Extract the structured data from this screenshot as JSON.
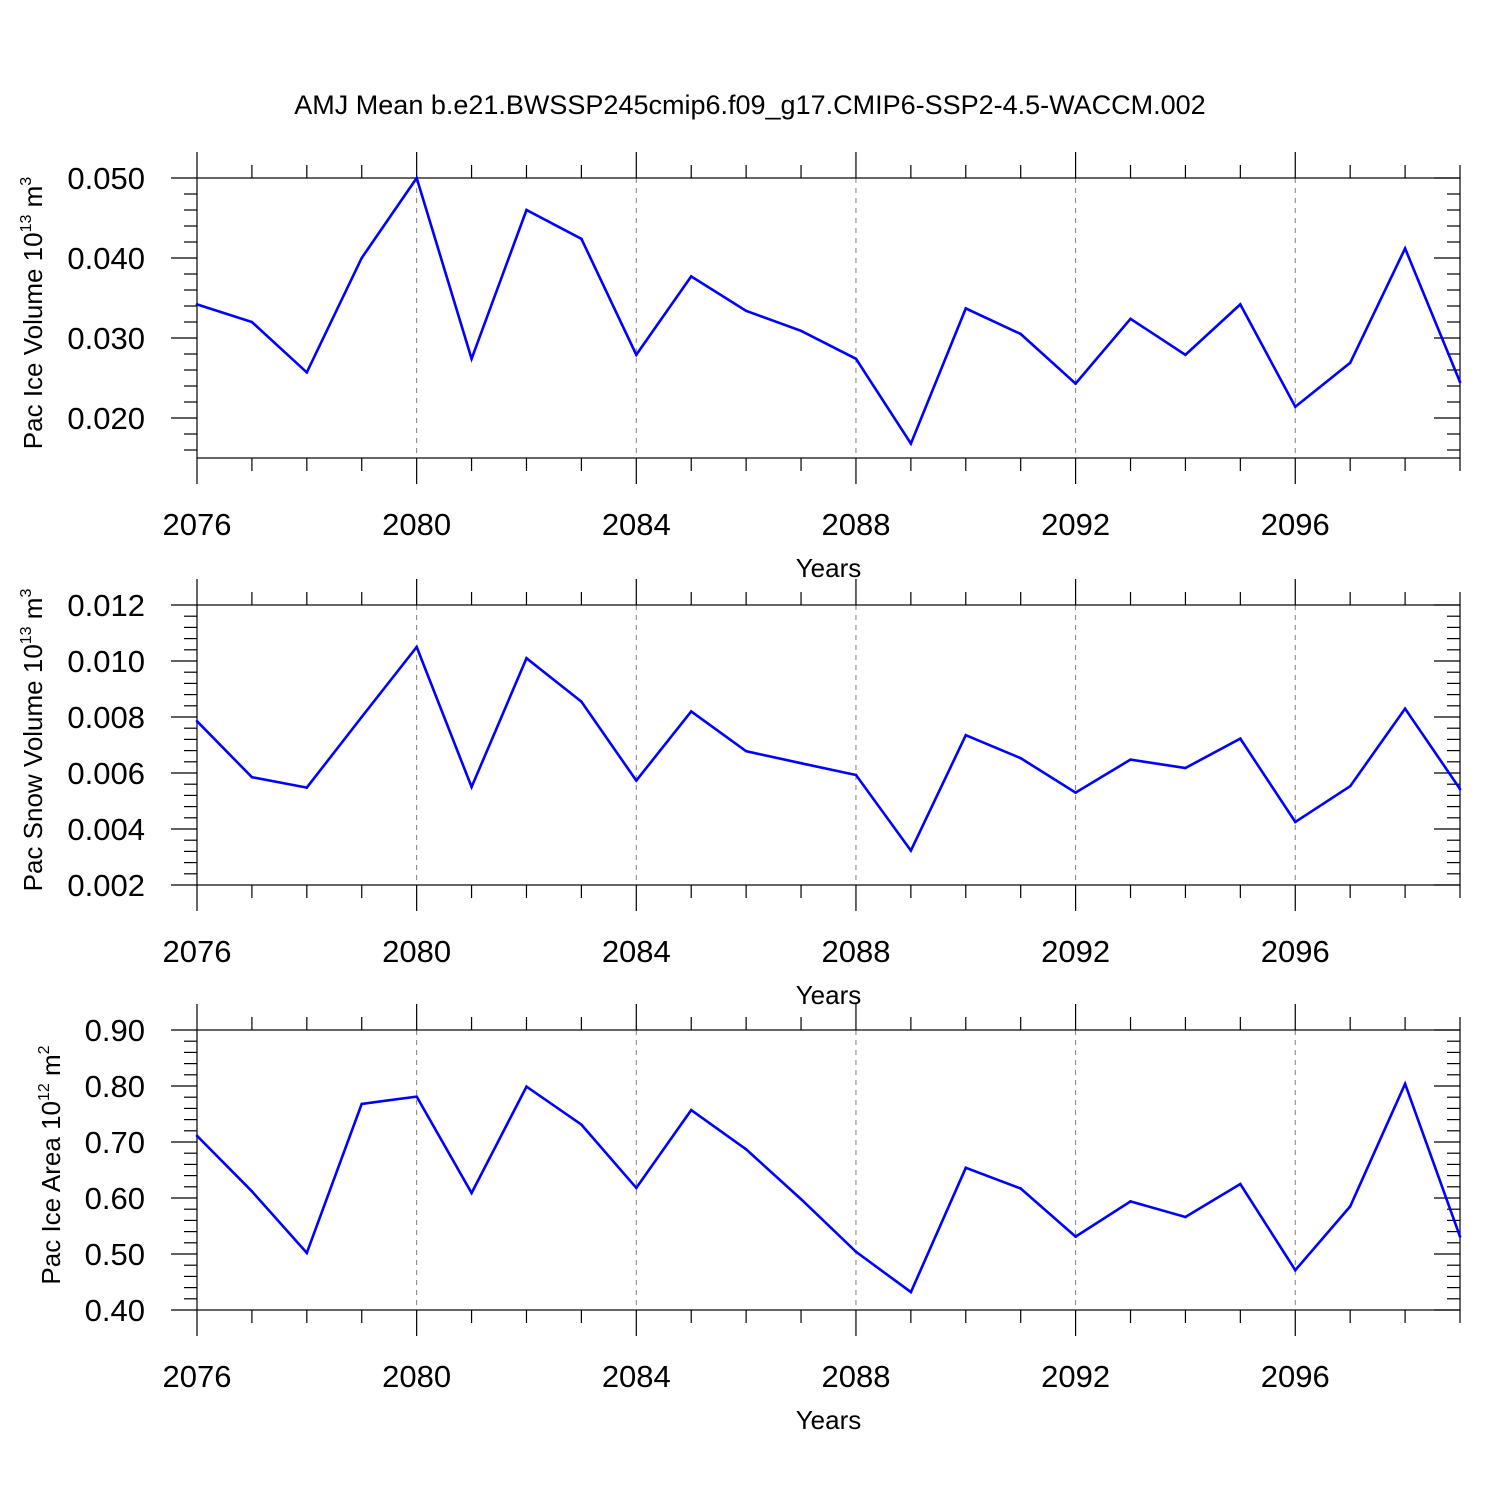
{
  "title": "AMJ Mean b.e21.BWSSP245cmip6.f09_g17.CMIP6-SSP2-4.5-WACCM.002",
  "colors": {
    "series": "#0000ff",
    "axis": "#000000",
    "grid": "#808080",
    "background": "#ffffff"
  },
  "chart_data": [
    {
      "type": "line",
      "ylabel_main": "Pac Ice Volume 10",
      "ylabel_sup": "13",
      "ylabel_unit": " m",
      "ylabel_unit_sup": "3",
      "xlabel": "Years",
      "xlim": [
        2076,
        2099
      ],
      "ylim": [
        0.015,
        0.05
      ],
      "x_ticks": [
        "2076",
        "2080",
        "2084",
        "2088",
        "2092",
        "2096"
      ],
      "y_ticks": [
        "0.020",
        "0.030",
        "0.040",
        "0.050"
      ],
      "grid": "vertical dashed at major x ticks",
      "x": [
        2076,
        2077,
        2078,
        2079,
        2080,
        2081,
        2082,
        2083,
        2084,
        2085,
        2086,
        2087,
        2088,
        2089,
        2090,
        2091,
        2092,
        2093,
        2094,
        2095,
        2096,
        2097,
        2098,
        2099
      ],
      "values": [
        0.0342,
        0.032,
        0.0257,
        0.04,
        0.05,
        0.0274,
        0.046,
        0.0424,
        0.0279,
        0.0377,
        0.0334,
        0.0309,
        0.0274,
        0.0168,
        0.0337,
        0.0305,
        0.0243,
        0.0324,
        0.0279,
        0.0342,
        0.0214,
        0.0269,
        0.0412,
        0.0245
      ]
    },
    {
      "type": "line",
      "ylabel_main": "Pac Snow Volume 10",
      "ylabel_sup": "13",
      "ylabel_unit": " m",
      "ylabel_unit_sup": "3",
      "xlabel": "Years",
      "xlim": [
        2076,
        2099
      ],
      "ylim": [
        0.002,
        0.012
      ],
      "x_ticks": [
        "2076",
        "2080",
        "2084",
        "2088",
        "2092",
        "2096"
      ],
      "y_ticks": [
        "0.002",
        "0.004",
        "0.006",
        "0.008",
        "0.010",
        "0.012"
      ],
      "grid": "vertical dashed at major x ticks",
      "x": [
        2076,
        2077,
        2078,
        2079,
        2080,
        2081,
        2082,
        2083,
        2084,
        2085,
        2086,
        2087,
        2088,
        2089,
        2090,
        2091,
        2092,
        2093,
        2094,
        2095,
        2096,
        2097,
        2098,
        2099
      ],
      "values": [
        0.00785,
        0.00585,
        0.00548,
        0.008,
        0.0105,
        0.0055,
        0.0101,
        0.00855,
        0.00573,
        0.0082,
        0.00678,
        0.00635,
        0.00593,
        0.00323,
        0.00735,
        0.00653,
        0.0053,
        0.00648,
        0.00618,
        0.00723,
        0.00425,
        0.00553,
        0.0083,
        0.00543
      ]
    },
    {
      "type": "line",
      "ylabel_main": "Pac Ice Area 10",
      "ylabel_sup": "12",
      "ylabel_unit": " m",
      "ylabel_unit_sup": "2",
      "xlabel": "Years",
      "xlim": [
        2076,
        2099
      ],
      "ylim": [
        0.4,
        0.9
      ],
      "x_ticks": [
        "2076",
        "2080",
        "2084",
        "2088",
        "2092",
        "2096"
      ],
      "y_ticks": [
        "0.40",
        "0.50",
        "0.60",
        "0.70",
        "0.80",
        "0.90"
      ],
      "grid": "vertical dashed at major x ticks",
      "x": [
        2076,
        2077,
        2078,
        2079,
        2080,
        2081,
        2082,
        2083,
        2084,
        2085,
        2086,
        2087,
        2088,
        2089,
        2090,
        2091,
        2092,
        2093,
        2094,
        2095,
        2096,
        2097,
        2098,
        2099
      ],
      "values": [
        0.711,
        0.612,
        0.502,
        0.768,
        0.781,
        0.609,
        0.799,
        0.731,
        0.618,
        0.757,
        0.687,
        0.598,
        0.504,
        0.432,
        0.654,
        0.617,
        0.531,
        0.594,
        0.566,
        0.625,
        0.471,
        0.585,
        0.804,
        0.531
      ]
    }
  ]
}
